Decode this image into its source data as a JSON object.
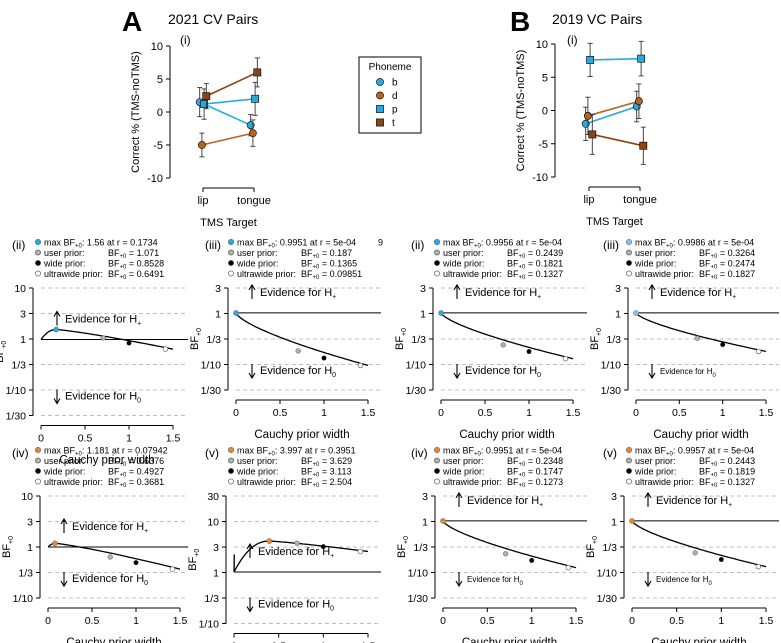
{
  "panelA": {
    "letter": "A",
    "title": "2021 CV Pairs",
    "sub": "(i)",
    "ylabel": "Correct % (TMS-noTMS)",
    "xlabel": "TMS Target",
    "categories": [
      "lip",
      "tongue"
    ],
    "yticks": [
      "10",
      "5",
      "0",
      "-5",
      "-10"
    ]
  },
  "panelB": {
    "letter": "B",
    "title": "2019 VC Pairs",
    "sub": "(i)",
    "ylabel": "Correct % (TMS-noTMS)",
    "xlabel": "TMS Target",
    "categories": [
      "lip",
      "tongue"
    ],
    "yticks": [
      "10",
      "5",
      "0",
      "-5",
      "-10"
    ]
  },
  "legend": {
    "title": "Phoneme",
    "items": [
      {
        "label": "b",
        "color": "#29a9e0",
        "shape": "circle"
      },
      {
        "label": "d",
        "color": "#b5651d",
        "shape": "circle"
      },
      {
        "label": "p",
        "color": "#29a9e0",
        "shape": "square"
      },
      {
        "label": "t",
        "color": "#8b4513",
        "shape": "square"
      }
    ]
  },
  "bf_axis": {
    "ylabel_main": "BF",
    "ylabel_sub": "+0",
    "xlabel": "Cauchy prior width",
    "xticks": [
      "0",
      "0.5",
      "1",
      "1.5"
    ],
    "hplus_main": "Evidence for H",
    "hplus_sub": "+",
    "h0_main": "Evidence for H",
    "h0_sub": "0",
    "legend_labels": {
      "max": "max BF",
      "max_sub": "+0",
      "user": "user prior:",
      "wide": "wide prior:",
      "ultrawide": "ultrawide prior:",
      "bf_main": "BF",
      "bf_sub": "+0"
    }
  },
  "chart_data": [
    {
      "type": "line",
      "panel": "A(i)",
      "title": "2021 CV Pairs",
      "xlabel": "TMS Target",
      "ylabel": "Correct % (TMS-noTMS)",
      "ylim": [
        -10,
        10
      ],
      "categories": [
        "lip",
        "tongue"
      ],
      "series": [
        {
          "name": "b",
          "color": "#29a9e0",
          "marker": "circle",
          "values": [
            1.5,
            -2
          ],
          "errors": [
            2.2,
            1.6
          ]
        },
        {
          "name": "d",
          "color": "#b5651d",
          "marker": "circle",
          "values": [
            -5,
            -3.2
          ],
          "errors": [
            1.8,
            2.0
          ]
        },
        {
          "name": "p",
          "color": "#29a9e0",
          "marker": "square",
          "values": [
            1.2,
            2
          ],
          "errors": [
            2.3,
            2.5
          ]
        },
        {
          "name": "t",
          "color": "#8b4513",
          "marker": "square",
          "values": [
            2.4,
            6
          ],
          "errors": [
            1.9,
            2.2
          ]
        }
      ]
    },
    {
      "type": "line",
      "panel": "B(i)",
      "title": "2019 VC Pairs",
      "xlabel": "TMS Target",
      "ylabel": "Correct % (TMS-noTMS)",
      "ylim": [
        -10,
        10
      ],
      "categories": [
        "lip",
        "tongue"
      ],
      "series": [
        {
          "name": "b",
          "color": "#29a9e0",
          "marker": "circle",
          "values": [
            -2,
            0.6
          ],
          "errors": [
            2.5,
            2.3
          ]
        },
        {
          "name": "d",
          "color": "#b5651d",
          "marker": "circle",
          "values": [
            -0.8,
            1.4
          ],
          "errors": [
            2.8,
            2.6
          ]
        },
        {
          "name": "p",
          "color": "#29a9e0",
          "marker": "square",
          "values": [
            7.6,
            7.8
          ],
          "errors": [
            2.5,
            2.6
          ]
        },
        {
          "name": "t",
          "color": "#8b4513",
          "marker": "square",
          "values": [
            -3.6,
            -5.3
          ],
          "errors": [
            3.0,
            2.8
          ]
        }
      ]
    },
    {
      "type": "line",
      "panel": "A(ii)",
      "sub": "(ii)",
      "ylim": [
        0.0333,
        10
      ],
      "ytick_labels": [
        "10",
        "3",
        "1",
        "1/3",
        "1/10",
        "1/30"
      ],
      "xlim": [
        0,
        1.5
      ],
      "ytop": 10,
      "max_color": "#29a9e0",
      "max_value": "1.56",
      "max_r": "0.1734",
      "user": "1.071",
      "wide": "0.8528",
      "ultrawide": "0.6491",
      "peak": 1.56,
      "peak_x": 0.1734
    },
    {
      "type": "line",
      "panel": "A(iii)",
      "sub": "(iii)",
      "ylim": [
        0.0333,
        3
      ],
      "ytick_labels": [
        "3",
        "1",
        "1/3",
        "1/10",
        "1/30"
      ],
      "xlim": [
        0,
        1.5
      ],
      "ytop": 3,
      "max_color": "#29a9e0",
      "max_value": "0.9951",
      "max_r": "5e-04",
      "user": "0.187",
      "wide": "0.1365",
      "ultrawide": "0.09851",
      "stray": "9"
    },
    {
      "type": "line",
      "panel": "B(ii)",
      "sub": "(ii)",
      "ylim": [
        0.0333,
        3
      ],
      "ytick_labels": [
        "3",
        "1",
        "1/3",
        "1/10",
        "1/30"
      ],
      "xlim": [
        0,
        1.5
      ],
      "ytop": 3,
      "max_color": "#29a9e0",
      "max_value": "0.9956",
      "max_r": "5e-04",
      "user": "0.2439",
      "wide": "0.1821",
      "ultrawide": "0.1327"
    },
    {
      "type": "line",
      "panel": "B(iii)",
      "sub": "(iii)",
      "ylim": [
        0.0333,
        3
      ],
      "ytick_labels": [
        "3",
        "1",
        "1/3",
        "1/10",
        "1/30"
      ],
      "xlim": [
        0,
        1.5
      ],
      "ytop": 3,
      "max_color": "#7fc4e8",
      "max_value": "0.9986",
      "max_r": "5e-04",
      "user": "0.3264",
      "wide": "0.2474",
      "ultrawide": "0.1827"
    },
    {
      "type": "line",
      "panel": "A(iv)",
      "sub": "(iv)",
      "ylim": [
        0.1,
        10
      ],
      "ytick_labels": [
        "10",
        "3",
        "1",
        "1/3",
        "1/10"
      ],
      "xlim": [
        0,
        1.5
      ],
      "ytop": 10,
      "max_color": "#e08a3c",
      "max_value": "1.181",
      "max_r": "0.07942",
      "user": "0.6376",
      "wide": "0.4927",
      "ultrawide": "0.3681",
      "peak": 1.181,
      "peak_x": 0.07942
    },
    {
      "type": "line",
      "panel": "A(v)",
      "sub": "(v)",
      "ylim": [
        0.1,
        30
      ],
      "ytick_labels": [
        "30",
        "10",
        "3",
        "1",
        "1/3",
        "1/10"
      ],
      "xlim": [
        0,
        1.5
      ],
      "ytop": 30,
      "max_color": "#e08a3c",
      "max_value": "3.997",
      "max_r": "0.3951",
      "user": "3.629",
      "wide": "3.113",
      "ultrawide": "2.504",
      "peak": 3.997,
      "peak_x": 0.3951
    },
    {
      "type": "line",
      "panel": "B(iv)",
      "sub": "(iv)",
      "ylim": [
        0.0333,
        3
      ],
      "ytick_labels": [
        "3",
        "1",
        "1/3",
        "1/10",
        "1/30"
      ],
      "xlim": [
        0,
        1.5
      ],
      "ytop": 3,
      "max_color": "#e08a3c",
      "max_value": "0.9951",
      "max_r": "5e-04",
      "user": "0.2348",
      "wide": "0.1747",
      "ultrawide": "0.1273"
    },
    {
      "type": "line",
      "panel": "B(v)",
      "sub": "(v)",
      "ylim": [
        0.0333,
        3
      ],
      "ytick_labels": [
        "3",
        "1",
        "1/3",
        "1/10",
        "1/30"
      ],
      "xlim": [
        0,
        1.5
      ],
      "ytop": 3,
      "max_color": "#e08a3c",
      "max_value": "0.9957",
      "max_r": "5e-04",
      "user": "0.2443",
      "wide": "0.1819",
      "ultrawide": "0.1327"
    }
  ]
}
